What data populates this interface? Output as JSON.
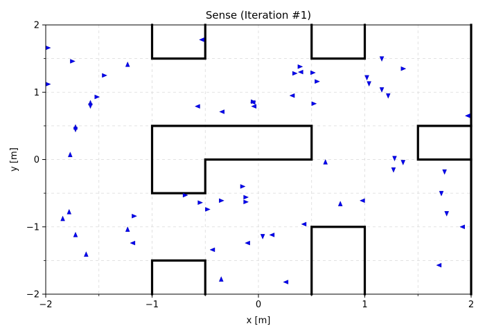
{
  "chart_data": {
    "type": "scatter",
    "title": "Sense (Iteration #1)",
    "xlabel": "x [m]",
    "ylabel": "y [m]",
    "xlim": [
      -2,
      2
    ],
    "ylim": [
      -2,
      2
    ],
    "xticks": [
      -2,
      -1,
      0,
      1,
      2
    ],
    "yticks": [
      -2,
      -1,
      0,
      1,
      2
    ],
    "xtick_labels": [
      "−2",
      "−1",
      "0",
      "1",
      "2"
    ],
    "ytick_labels": [
      "−2",
      "−1",
      "0",
      "1",
      "2"
    ],
    "grid": true,
    "colors": {
      "particles": "#0000ee",
      "walls": "#000000",
      "grid": "#d9d9d9"
    },
    "walls": [
      [
        [
          -1,
          2
        ],
        [
          -1,
          1.5
        ],
        [
          -0.5,
          1.5
        ],
        [
          -0.5,
          2
        ]
      ],
      [
        [
          0.5,
          2
        ],
        [
          0.5,
          1.5
        ],
        [
          1,
          1.5
        ],
        [
          1,
          2
        ]
      ],
      [
        [
          -1,
          0.5
        ],
        [
          0.5,
          0.5
        ],
        [
          0.5,
          0
        ],
        [
          -0.5,
          0
        ],
        [
          -0.5,
          -0.5
        ],
        [
          -1,
          -0.5
        ],
        [
          -1,
          0.5
        ]
      ],
      [
        [
          2,
          0.5
        ],
        [
          1.5,
          0.5
        ],
        [
          1.5,
          0
        ],
        [
          2,
          0
        ]
      ],
      [
        [
          -1,
          -2
        ],
        [
          -1,
          -1.5
        ],
        [
          -0.5,
          -1.5
        ],
        [
          -0.5,
          -2
        ]
      ],
      [
        [
          0.5,
          -2
        ],
        [
          0.5,
          -1
        ],
        [
          1,
          -1
        ],
        [
          1,
          -2
        ]
      ],
      [
        [
          2,
          -2
        ],
        [
          2,
          2
        ]
      ]
    ],
    "particles": [
      {
        "x": -1.98,
        "y": 1.66,
        "heading": 0
      },
      {
        "x": -1.75,
        "y": 1.46,
        "heading": 0
      },
      {
        "x": -1.23,
        "y": 1.41,
        "heading": 90
      },
      {
        "x": -1.45,
        "y": 1.25,
        "heading": 0
      },
      {
        "x": -1.98,
        "y": 1.12,
        "heading": 0
      },
      {
        "x": -1.52,
        "y": 0.93,
        "heading": 0
      },
      {
        "x": -1.58,
        "y": 0.84,
        "heading": 90
      },
      {
        "x": -1.58,
        "y": 0.8,
        "heading": 270
      },
      {
        "x": -1.72,
        "y": 0.48,
        "heading": 90
      },
      {
        "x": -1.72,
        "y": 0.45,
        "heading": 270
      },
      {
        "x": -1.77,
        "y": 0.07,
        "heading": 90
      },
      {
        "x": -0.53,
        "y": 1.78,
        "heading": 180
      },
      {
        "x": -0.57,
        "y": 0.79,
        "heading": 180
      },
      {
        "x": -0.34,
        "y": 0.71,
        "heading": 180
      },
      {
        "x": -0.05,
        "y": 0.86,
        "heading": 0
      },
      {
        "x": -0.05,
        "y": 0.85,
        "heading": 180
      },
      {
        "x": -0.04,
        "y": 0.79,
        "heading": 180
      },
      {
        "x": 0.39,
        "y": 1.38,
        "heading": 0
      },
      {
        "x": 0.4,
        "y": 1.3,
        "heading": 180
      },
      {
        "x": 0.34,
        "y": 1.28,
        "heading": 0
      },
      {
        "x": 0.51,
        "y": 1.29,
        "heading": 0
      },
      {
        "x": 0.55,
        "y": 1.16,
        "heading": 0
      },
      {
        "x": 0.32,
        "y": 0.95,
        "heading": 180
      },
      {
        "x": 0.52,
        "y": 0.83,
        "heading": 0
      },
      {
        "x": 1.16,
        "y": 1.5,
        "heading": 270
      },
      {
        "x": 1.36,
        "y": 1.35,
        "heading": 0
      },
      {
        "x": 1.02,
        "y": 1.22,
        "heading": 270
      },
      {
        "x": 1.04,
        "y": 1.13,
        "heading": 270
      },
      {
        "x": 1.16,
        "y": 1.04,
        "heading": 270
      },
      {
        "x": 1.22,
        "y": 0.95,
        "heading": 270
      },
      {
        "x": 1.97,
        "y": 0.65,
        "heading": 180
      },
      {
        "x": 1.28,
        "y": 0.02,
        "heading": 270
      },
      {
        "x": 1.36,
        "y": -0.04,
        "heading": 270
      },
      {
        "x": 0.63,
        "y": -0.04,
        "heading": 90
      },
      {
        "x": 1.27,
        "y": -0.15,
        "heading": 270
      },
      {
        "x": 1.75,
        "y": -0.18,
        "heading": 270
      },
      {
        "x": 1.72,
        "y": -0.5,
        "heading": 270
      },
      {
        "x": 1.77,
        "y": -0.8,
        "heading": 270
      },
      {
        "x": 1.92,
        "y": -1.0,
        "heading": 180
      },
      {
        "x": 1.7,
        "y": -1.57,
        "heading": 180
      },
      {
        "x": 0.77,
        "y": -0.66,
        "heading": 90
      },
      {
        "x": 0.98,
        "y": -0.61,
        "heading": 180
      },
      {
        "x": 0.43,
        "y": -0.96,
        "heading": 180
      },
      {
        "x": 0.13,
        "y": -1.12,
        "heading": 180
      },
      {
        "x": 0.04,
        "y": -1.14,
        "heading": 270
      },
      {
        "x": 0.26,
        "y": -1.82,
        "heading": 180
      },
      {
        "x": -0.15,
        "y": -0.4,
        "heading": 0
      },
      {
        "x": -0.12,
        "y": -0.56,
        "heading": 0
      },
      {
        "x": -0.12,
        "y": -0.63,
        "heading": 0
      },
      {
        "x": -0.35,
        "y": -0.61,
        "heading": 0
      },
      {
        "x": -0.55,
        "y": -0.64,
        "heading": 0
      },
      {
        "x": -0.48,
        "y": -0.74,
        "heading": 0
      },
      {
        "x": -0.69,
        "y": -0.53,
        "heading": 0
      },
      {
        "x": -0.1,
        "y": -1.24,
        "heading": 180
      },
      {
        "x": -0.43,
        "y": -1.34,
        "heading": 180
      },
      {
        "x": -0.35,
        "y": -1.78,
        "heading": 90
      },
      {
        "x": -1.17,
        "y": -0.84,
        "heading": 0
      },
      {
        "x": -1.23,
        "y": -1.04,
        "heading": 90
      },
      {
        "x": -1.18,
        "y": -1.24,
        "heading": 180
      },
      {
        "x": -1.78,
        "y": -0.78,
        "heading": 90
      },
      {
        "x": -1.84,
        "y": -0.88,
        "heading": 90
      },
      {
        "x": -1.72,
        "y": -1.12,
        "heading": 90
      },
      {
        "x": -1.62,
        "y": -1.41,
        "heading": 90
      }
    ]
  }
}
